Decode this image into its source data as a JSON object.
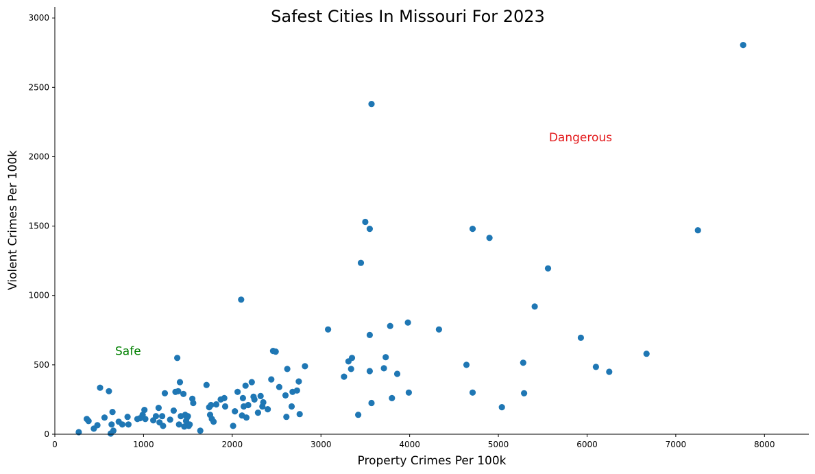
{
  "chart_data": {
    "type": "scatter",
    "title": "Safest Cities In Missouri For 2023",
    "xlabel": "Property Crimes Per 100k",
    "ylabel": "Violent Crimes Per 100k",
    "xlim": [
      0,
      8500
    ],
    "ylim": [
      0,
      3080
    ],
    "xticks": [
      0,
      1000,
      2000,
      3000,
      4000,
      5000,
      6000,
      7000,
      8000
    ],
    "yticks": [
      0,
      500,
      1000,
      1500,
      2000,
      2500,
      3000
    ],
    "grid": false,
    "point_color": "#1f77b4",
    "annotations": [
      {
        "text": "Safe",
        "x": 680,
        "y": 600,
        "color": "#008000"
      },
      {
        "text": "Dangerous",
        "x": 5570,
        "y": 2140,
        "color": "#e31a1c"
      }
    ],
    "points": [
      [
        270,
        15
      ],
      [
        360,
        110
      ],
      [
        380,
        95
      ],
      [
        440,
        40
      ],
      [
        480,
        65
      ],
      [
        510,
        335
      ],
      [
        560,
        120
      ],
      [
        610,
        310
      ],
      [
        630,
        5
      ],
      [
        640,
        70
      ],
      [
        650,
        160
      ],
      [
        660,
        25
      ],
      [
        720,
        90
      ],
      [
        760,
        70
      ],
      [
        820,
        125
      ],
      [
        830,
        70
      ],
      [
        930,
        110
      ],
      [
        960,
        115
      ],
      [
        990,
        140
      ],
      [
        1010,
        175
      ],
      [
        1020,
        110
      ],
      [
        1110,
        100
      ],
      [
        1140,
        130
      ],
      [
        1170,
        190
      ],
      [
        1180,
        85
      ],
      [
        1210,
        130
      ],
      [
        1220,
        60
      ],
      [
        1240,
        295
      ],
      [
        1300,
        105
      ],
      [
        1340,
        170
      ],
      [
        1360,
        305
      ],
      [
        1380,
        550
      ],
      [
        1390,
        310
      ],
      [
        1400,
        70
      ],
      [
        1410,
        375
      ],
      [
        1420,
        130
      ],
      [
        1450,
        290
      ],
      [
        1460,
        55
      ],
      [
        1470,
        140
      ],
      [
        1480,
        95
      ],
      [
        1490,
        120
      ],
      [
        1500,
        130
      ],
      [
        1510,
        60
      ],
      [
        1520,
        70
      ],
      [
        1550,
        255
      ],
      [
        1560,
        225
      ],
      [
        1640,
        25
      ],
      [
        1710,
        355
      ],
      [
        1740,
        195
      ],
      [
        1750,
        140
      ],
      [
        1760,
        210
      ],
      [
        1770,
        110
      ],
      [
        1790,
        90
      ],
      [
        1820,
        215
      ],
      [
        1870,
        250
      ],
      [
        1910,
        260
      ],
      [
        1920,
        200
      ],
      [
        2010,
        60
      ],
      [
        2030,
        165
      ],
      [
        2060,
        305
      ],
      [
        2100,
        970
      ],
      [
        2110,
        135
      ],
      [
        2120,
        260
      ],
      [
        2130,
        200
      ],
      [
        2150,
        350
      ],
      [
        2160,
        120
      ],
      [
        2180,
        210
      ],
      [
        2220,
        375
      ],
      [
        2240,
        270
      ],
      [
        2250,
        250
      ],
      [
        2290,
        155
      ],
      [
        2320,
        275
      ],
      [
        2340,
        200
      ],
      [
        2350,
        230
      ],
      [
        2400,
        180
      ],
      [
        2440,
        395
      ],
      [
        2460,
        600
      ],
      [
        2490,
        595
      ],
      [
        2530,
        340
      ],
      [
        2600,
        280
      ],
      [
        2610,
        125
      ],
      [
        2620,
        470
      ],
      [
        2670,
        200
      ],
      [
        2680,
        305
      ],
      [
        2730,
        315
      ],
      [
        2750,
        380
      ],
      [
        2760,
        145
      ],
      [
        2820,
        490
      ],
      [
        3080,
        755
      ],
      [
        3260,
        415
      ],
      [
        3310,
        525
      ],
      [
        3340,
        470
      ],
      [
        3350,
        550
      ],
      [
        3420,
        140
      ],
      [
        3450,
        1235
      ],
      [
        3500,
        1530
      ],
      [
        3550,
        1480
      ],
      [
        3550,
        715
      ],
      [
        3550,
        455
      ],
      [
        3570,
        225
      ],
      [
        3570,
        2380
      ],
      [
        3710,
        475
      ],
      [
        3730,
        555
      ],
      [
        3780,
        780
      ],
      [
        3800,
        260
      ],
      [
        3860,
        435
      ],
      [
        3980,
        805
      ],
      [
        3990,
        300
      ],
      [
        4330,
        755
      ],
      [
        4640,
        500
      ],
      [
        4710,
        300
      ],
      [
        4710,
        1480
      ],
      [
        4900,
        1415
      ],
      [
        5040,
        195
      ],
      [
        5280,
        515
      ],
      [
        5290,
        295
      ],
      [
        5560,
        1195
      ],
      [
        5410,
        920
      ],
      [
        5930,
        695
      ],
      [
        6100,
        485
      ],
      [
        6250,
        450
      ],
      [
        6670,
        580
      ],
      [
        7250,
        1470
      ],
      [
        7760,
        2805
      ]
    ]
  }
}
